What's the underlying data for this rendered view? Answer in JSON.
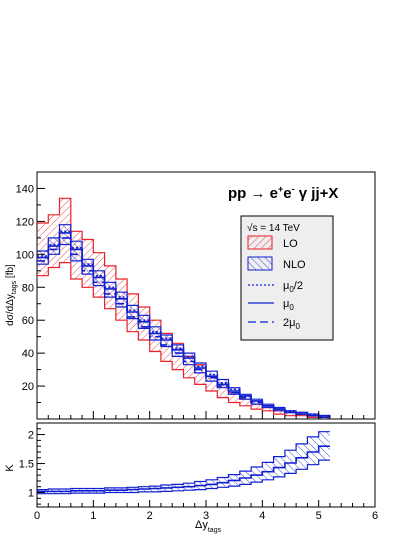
{
  "chart_data": [
    {
      "type": "line",
      "title": "pp → e⁺e⁻ γ jj+X",
      "ylabel": "dσ/dΔy_tags [fb]",
      "xlabel": "",
      "xlim": [
        0,
        6
      ],
      "ylim": [
        0,
        150
      ],
      "yticks": [
        20,
        40,
        60,
        80,
        100,
        120,
        140
      ],
      "grid": false,
      "legend": {
        "placement": "top-right",
        "header": "√s = 14 TeV",
        "entries": [
          "LO",
          "NLO",
          "μ₀/2",
          "μ₀",
          "2μ₀"
        ]
      },
      "bin_width": 0.2,
      "x_bin_edges_start": 0.0,
      "series": [
        {
          "name": "LO",
          "kind": "band",
          "color": "#e8202a",
          "upper": [
            119,
            124,
            134,
            114,
            109,
            101,
            93,
            85,
            76,
            68,
            60,
            52,
            46,
            38,
            33,
            26,
            21,
            16,
            12,
            9,
            7,
            5,
            4,
            3,
            2,
            1
          ],
          "lower": [
            87,
            92,
            95,
            85,
            80,
            74,
            67,
            60,
            53,
            48,
            41,
            35,
            30,
            25,
            21,
            17,
            13,
            10,
            8,
            6,
            5,
            3,
            2,
            2,
            1,
            1
          ]
        },
        {
          "name": "NLO",
          "kind": "band",
          "color": "#1020d0",
          "upper": [
            102,
            110,
            118,
            108,
            97,
            90,
            83,
            77,
            69,
            63,
            56,
            51,
            45,
            40,
            34,
            29,
            24,
            19,
            15,
            12,
            9,
            7,
            5,
            4,
            3,
            2
          ],
          "lower": [
            94,
            100,
            106,
            96,
            88,
            81,
            74,
            68,
            61,
            55,
            48,
            44,
            38,
            33,
            28,
            23,
            19,
            15,
            12,
            9,
            7,
            5,
            4,
            3,
            2,
            1
          ]
        },
        {
          "name": "μ₀/2",
          "kind": "line",
          "style": "dotted",
          "color": "#1020d0",
          "values": [
            99,
            106,
            114,
            104,
            94,
            87,
            80,
            74,
            66,
            60,
            53,
            49,
            43,
            38,
            32,
            27,
            22,
            18,
            14,
            11,
            8,
            6,
            5,
            4,
            3,
            2
          ]
        },
        {
          "name": "μ₀",
          "kind": "line",
          "style": "solid",
          "color": "#1020d0",
          "values": [
            98,
            105,
            113,
            103,
            93,
            86,
            79,
            73,
            65,
            59,
            52,
            48,
            42,
            37,
            31,
            26,
            21,
            17,
            14,
            11,
            8,
            6,
            4,
            3,
            2,
            2
          ]
        },
        {
          "name": "2μ₀",
          "kind": "line",
          "style": "dashed",
          "color": "#1020d0",
          "values": [
            96,
            103,
            110,
            100,
            90,
            83,
            76,
            70,
            62,
            56,
            50,
            45,
            40,
            35,
            30,
            25,
            20,
            16,
            13,
            10,
            8,
            6,
            4,
            3,
            2,
            1
          ]
        }
      ]
    },
    {
      "type": "line",
      "title": "",
      "ylabel": "K",
      "xlabel": "Δy_tags",
      "xlim": [
        0,
        6
      ],
      "ylim": [
        0.75,
        2.2
      ],
      "yticks": [
        1,
        1.5,
        2
      ],
      "xticks": [
        0,
        1,
        2,
        3,
        4,
        5,
        6
      ],
      "grid": false,
      "bin_width": 0.2,
      "x_bin_edges_start": 0.0,
      "series": [
        {
          "name": "K",
          "kind": "band",
          "color": "#1020d0",
          "upper": [
            1.05,
            1.06,
            1.06,
            1.07,
            1.07,
            1.07,
            1.08,
            1.08,
            1.09,
            1.1,
            1.11,
            1.13,
            1.14,
            1.16,
            1.19,
            1.22,
            1.26,
            1.31,
            1.37,
            1.44,
            1.52,
            1.62,
            1.73,
            1.84,
            1.96,
            2.05
          ],
          "lower": [
            0.98,
            0.98,
            0.98,
            0.99,
            0.99,
            0.99,
            1.0,
            1.0,
            1.0,
            1.01,
            1.01,
            1.02,
            1.03,
            1.04,
            1.05,
            1.07,
            1.09,
            1.11,
            1.14,
            1.18,
            1.22,
            1.27,
            1.33,
            1.4,
            1.48,
            1.56
          ],
          "central": [
            1.02,
            1.02,
            1.02,
            1.03,
            1.03,
            1.03,
            1.04,
            1.04,
            1.05,
            1.06,
            1.07,
            1.08,
            1.09,
            1.1,
            1.12,
            1.14,
            1.17,
            1.21,
            1.25,
            1.3,
            1.36,
            1.43,
            1.51,
            1.6,
            1.7,
            1.8
          ]
        }
      ]
    }
  ],
  "labels": {
    "title_main": "pp ",
    "title_arrow": "→",
    "title_ee": " e",
    "title_sup_plus": "+",
    "title_e2": "e",
    "title_sup_minus": "-",
    "title_rest": "  γ  jj+X",
    "ylabel_main": "dσ/dΔy",
    "ylabel_sub": "tags",
    "ylabel_unit": " [fb]",
    "ylabel_ratio": "K",
    "xlabel_main": "Δy",
    "xlabel_sub": "tags",
    "legend_header": "√s = 14 TeV",
    "legend_lo": "LO",
    "legend_nlo": "NLO",
    "legend_mu_half": "μ",
    "legend_mu_half_sub": "0",
    "legend_mu_half_suffix": "/2",
    "legend_mu": "μ",
    "legend_mu_sub": "0",
    "legend_mu2_prefix": "2μ",
    "legend_mu2_sub": "0"
  },
  "colors": {
    "lo": "#e8202a",
    "nlo": "#1020d0"
  }
}
